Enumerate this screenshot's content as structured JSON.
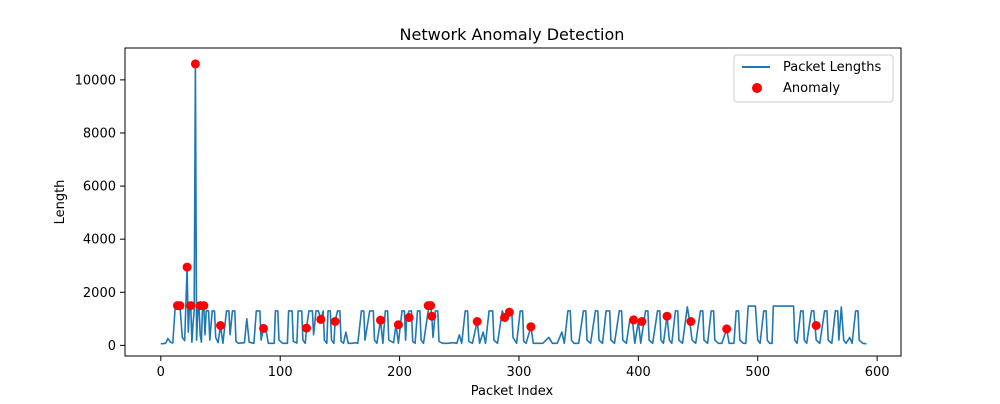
{
  "chart_data": {
    "type": "line",
    "title": "Network Anomaly Detection",
    "xlabel": "Packet Index",
    "ylabel": "Length",
    "xlim": [
      -30,
      620
    ],
    "ylim": [
      -400,
      11200
    ],
    "xticks": [
      0,
      100,
      200,
      300,
      400,
      500,
      600
    ],
    "yticks": [
      0,
      2000,
      4000,
      6000,
      8000,
      10000
    ],
    "grid": false,
    "legend_position": "top-right",
    "series": [
      {
        "name": "Packet Lengths",
        "color": "#1f77b4",
        "points": [
          [
            0,
            60
          ],
          [
            4,
            80
          ],
          [
            6,
            260
          ],
          [
            8,
            120
          ],
          [
            10,
            90
          ],
          [
            12,
            1400
          ],
          [
            14,
            1500
          ],
          [
            16,
            1500
          ],
          [
            18,
            300
          ],
          [
            20,
            180
          ],
          [
            22,
            2950
          ],
          [
            23,
            500
          ],
          [
            24,
            1450
          ],
          [
            25,
            1550
          ],
          [
            26,
            120
          ],
          [
            27,
            800
          ],
          [
            28,
            1300
          ],
          [
            29,
            10600
          ],
          [
            30,
            200
          ],
          [
            31,
            1300
          ],
          [
            32,
            1500
          ],
          [
            33,
            400
          ],
          [
            34,
            120
          ],
          [
            35,
            1500
          ],
          [
            36,
            1500
          ],
          [
            37,
            400
          ],
          [
            38,
            1300
          ],
          [
            40,
            1300
          ],
          [
            41,
            200
          ],
          [
            43,
            1300
          ],
          [
            45,
            1300
          ],
          [
            46,
            300
          ],
          [
            48,
            100
          ],
          [
            50,
            750
          ],
          [
            52,
            80
          ],
          [
            55,
            1300
          ],
          [
            57,
            1300
          ],
          [
            58,
            400
          ],
          [
            60,
            1300
          ],
          [
            62,
            1300
          ],
          [
            63,
            150
          ],
          [
            65,
            80
          ],
          [
            70,
            100
          ],
          [
            72,
            1000
          ],
          [
            74,
            120
          ],
          [
            78,
            80
          ],
          [
            80,
            1300
          ],
          [
            83,
            1300
          ],
          [
            84,
            200
          ],
          [
            86,
            640
          ],
          [
            88,
            600
          ],
          [
            90,
            80
          ],
          [
            95,
            80
          ],
          [
            96,
            1300
          ],
          [
            98,
            1300
          ],
          [
            99,
            200
          ],
          [
            102,
            80
          ],
          [
            106,
            80
          ],
          [
            107,
            1300
          ],
          [
            110,
            1300
          ],
          [
            111,
            150
          ],
          [
            114,
            90
          ],
          [
            115,
            1300
          ],
          [
            118,
            1300
          ],
          [
            119,
            200
          ],
          [
            121,
            80
          ],
          [
            122,
            650
          ],
          [
            124,
            1300
          ],
          [
            127,
            1300
          ],
          [
            128,
            400
          ],
          [
            130,
            1300
          ],
          [
            132,
            1300
          ],
          [
            134,
            980
          ],
          [
            136,
            1300
          ],
          [
            137,
            200
          ],
          [
            139,
            80
          ],
          [
            140,
            1300
          ],
          [
            142,
            1300
          ],
          [
            143,
            200
          ],
          [
            145,
            80
          ],
          [
            146,
            900
          ],
          [
            148,
            1300
          ],
          [
            150,
            1300
          ],
          [
            151,
            150
          ],
          [
            153,
            80
          ],
          [
            155,
            500
          ],
          [
            157,
            80
          ],
          [
            160,
            80
          ],
          [
            163,
            100
          ],
          [
            165,
            80
          ],
          [
            168,
            1300
          ],
          [
            170,
            1300
          ],
          [
            171,
            200
          ],
          [
            175,
            1300
          ],
          [
            178,
            1300
          ],
          [
            179,
            200
          ],
          [
            181,
            80
          ],
          [
            184,
            950
          ],
          [
            186,
            80
          ],
          [
            188,
            1300
          ],
          [
            190,
            1300
          ],
          [
            191,
            200
          ],
          [
            195,
            100
          ],
          [
            197,
            780
          ],
          [
            199,
            80
          ],
          [
            202,
            1300
          ],
          [
            204,
            1300
          ],
          [
            205,
            200
          ],
          [
            206,
            1050
          ],
          [
            208,
            1300
          ],
          [
            210,
            1300
          ],
          [
            211,
            150
          ],
          [
            213,
            80
          ],
          [
            215,
            1300
          ],
          [
            217,
            1300
          ],
          [
            218,
            200
          ],
          [
            220,
            80
          ],
          [
            224,
            1300
          ],
          [
            225,
            1500
          ],
          [
            226,
            1500
          ],
          [
            227,
            1100
          ],
          [
            228,
            300
          ],
          [
            230,
            1300
          ],
          [
            232,
            1300
          ],
          [
            233,
            150
          ],
          [
            236,
            80
          ],
          [
            240,
            80
          ],
          [
            245,
            100
          ],
          [
            248,
            80
          ],
          [
            250,
            400
          ],
          [
            252,
            80
          ],
          [
            255,
            1300
          ],
          [
            257,
            1300
          ],
          [
            258,
            150
          ],
          [
            261,
            80
          ],
          [
            265,
            900
          ],
          [
            267,
            80
          ],
          [
            270,
            500
          ],
          [
            272,
            80
          ],
          [
            275,
            1300
          ],
          [
            278,
            1300
          ],
          [
            279,
            200
          ],
          [
            282,
            80
          ],
          [
            286,
            1300
          ],
          [
            288,
            1050
          ],
          [
            290,
            1300
          ],
          [
            292,
            1250
          ],
          [
            294,
            1300
          ],
          [
            295,
            300
          ],
          [
            298,
            80
          ],
          [
            301,
            1300
          ],
          [
            303,
            1300
          ],
          [
            304,
            150
          ],
          [
            306,
            80
          ],
          [
            310,
            700
          ],
          [
            312,
            80
          ],
          [
            316,
            80
          ],
          [
            320,
            80
          ],
          [
            325,
            300
          ],
          [
            328,
            80
          ],
          [
            332,
            80
          ],
          [
            336,
            500
          ],
          [
            338,
            80
          ],
          [
            341,
            1300
          ],
          [
            343,
            1300
          ],
          [
            344,
            200
          ],
          [
            346,
            80
          ],
          [
            350,
            80
          ],
          [
            354,
            1300
          ],
          [
            356,
            1300
          ],
          [
            357,
            200
          ],
          [
            360,
            80
          ],
          [
            364,
            1300
          ],
          [
            366,
            1300
          ],
          [
            367,
            200
          ],
          [
            370,
            80
          ],
          [
            373,
            1300
          ],
          [
            376,
            1300
          ],
          [
            377,
            200
          ],
          [
            380,
            80
          ],
          [
            384,
            1300
          ],
          [
            386,
            1300
          ],
          [
            387,
            200
          ],
          [
            390,
            80
          ],
          [
            393,
            1000
          ],
          [
            395,
            960
          ],
          [
            397,
            80
          ],
          [
            400,
            900
          ],
          [
            402,
            80
          ],
          [
            406,
            1300
          ],
          [
            408,
            1300
          ],
          [
            409,
            200
          ],
          [
            412,
            80
          ],
          [
            416,
            1300
          ],
          [
            418,
            1300
          ],
          [
            419,
            200
          ],
          [
            421,
            80
          ],
          [
            424,
            1100
          ],
          [
            426,
            200
          ],
          [
            428,
            80
          ],
          [
            431,
            1300
          ],
          [
            433,
            1300
          ],
          [
            434,
            200
          ],
          [
            437,
            80
          ],
          [
            441,
            1450
          ],
          [
            443,
            900
          ],
          [
            445,
            200
          ],
          [
            448,
            80
          ],
          [
            452,
            1300
          ],
          [
            454,
            1300
          ],
          [
            455,
            200
          ],
          [
            458,
            80
          ],
          [
            461,
            1300
          ],
          [
            463,
            1300
          ],
          [
            464,
            200
          ],
          [
            467,
            80
          ],
          [
            470,
            80
          ],
          [
            474,
            620
          ],
          [
            476,
            80
          ],
          [
            480,
            80
          ],
          [
            482,
            1300
          ],
          [
            484,
            1300
          ],
          [
            485,
            200
          ],
          [
            488,
            80
          ],
          [
            490,
            80
          ],
          [
            492,
            1480
          ],
          [
            494,
            1480
          ],
          [
            496,
            1480
          ],
          [
            498,
            1480
          ],
          [
            500,
            200
          ],
          [
            502,
            80
          ],
          [
            505,
            1300
          ],
          [
            507,
            1300
          ],
          [
            508,
            200
          ],
          [
            510,
            80
          ],
          [
            512,
            80
          ],
          [
            513,
            1480
          ],
          [
            530,
            1480
          ],
          [
            531,
            200
          ],
          [
            533,
            80
          ],
          [
            536,
            1300
          ],
          [
            538,
            1300
          ],
          [
            539,
            200
          ],
          [
            541,
            80
          ],
          [
            545,
            1300
          ],
          [
            547,
            1300
          ],
          [
            548,
            750
          ],
          [
            549,
            200
          ],
          [
            552,
            80
          ],
          [
            556,
            1300
          ],
          [
            558,
            1300
          ],
          [
            559,
            200
          ],
          [
            562,
            80
          ],
          [
            565,
            1300
          ],
          [
            567,
            1300
          ],
          [
            568,
            200
          ],
          [
            570,
            1450
          ],
          [
            572,
            200
          ],
          [
            574,
            80
          ],
          [
            577,
            300
          ],
          [
            579,
            80
          ],
          [
            582,
            1300
          ],
          [
            584,
            1300
          ],
          [
            585,
            200
          ],
          [
            588,
            80
          ],
          [
            591,
            60
          ]
        ]
      },
      {
        "name": "Anomaly",
        "color": "#ff0000",
        "marker": "circle",
        "points": [
          [
            14,
            1500
          ],
          [
            16,
            1500
          ],
          [
            22,
            2950
          ],
          [
            25,
            1500
          ],
          [
            29,
            10600
          ],
          [
            33,
            1500
          ],
          [
            36,
            1500
          ],
          [
            50,
            750
          ],
          [
            86,
            640
          ],
          [
            122,
            650
          ],
          [
            134,
            980
          ],
          [
            146,
            900
          ],
          [
            184,
            950
          ],
          [
            199,
            780
          ],
          [
            208,
            1050
          ],
          [
            224,
            1500
          ],
          [
            226,
            1500
          ],
          [
            227,
            1100
          ],
          [
            265,
            900
          ],
          [
            288,
            1050
          ],
          [
            292,
            1250
          ],
          [
            310,
            700
          ],
          [
            396,
            960
          ],
          [
            403,
            900
          ],
          [
            424,
            1100
          ],
          [
            444,
            900
          ],
          [
            474,
            620
          ],
          [
            549,
            750
          ]
        ]
      }
    ]
  }
}
